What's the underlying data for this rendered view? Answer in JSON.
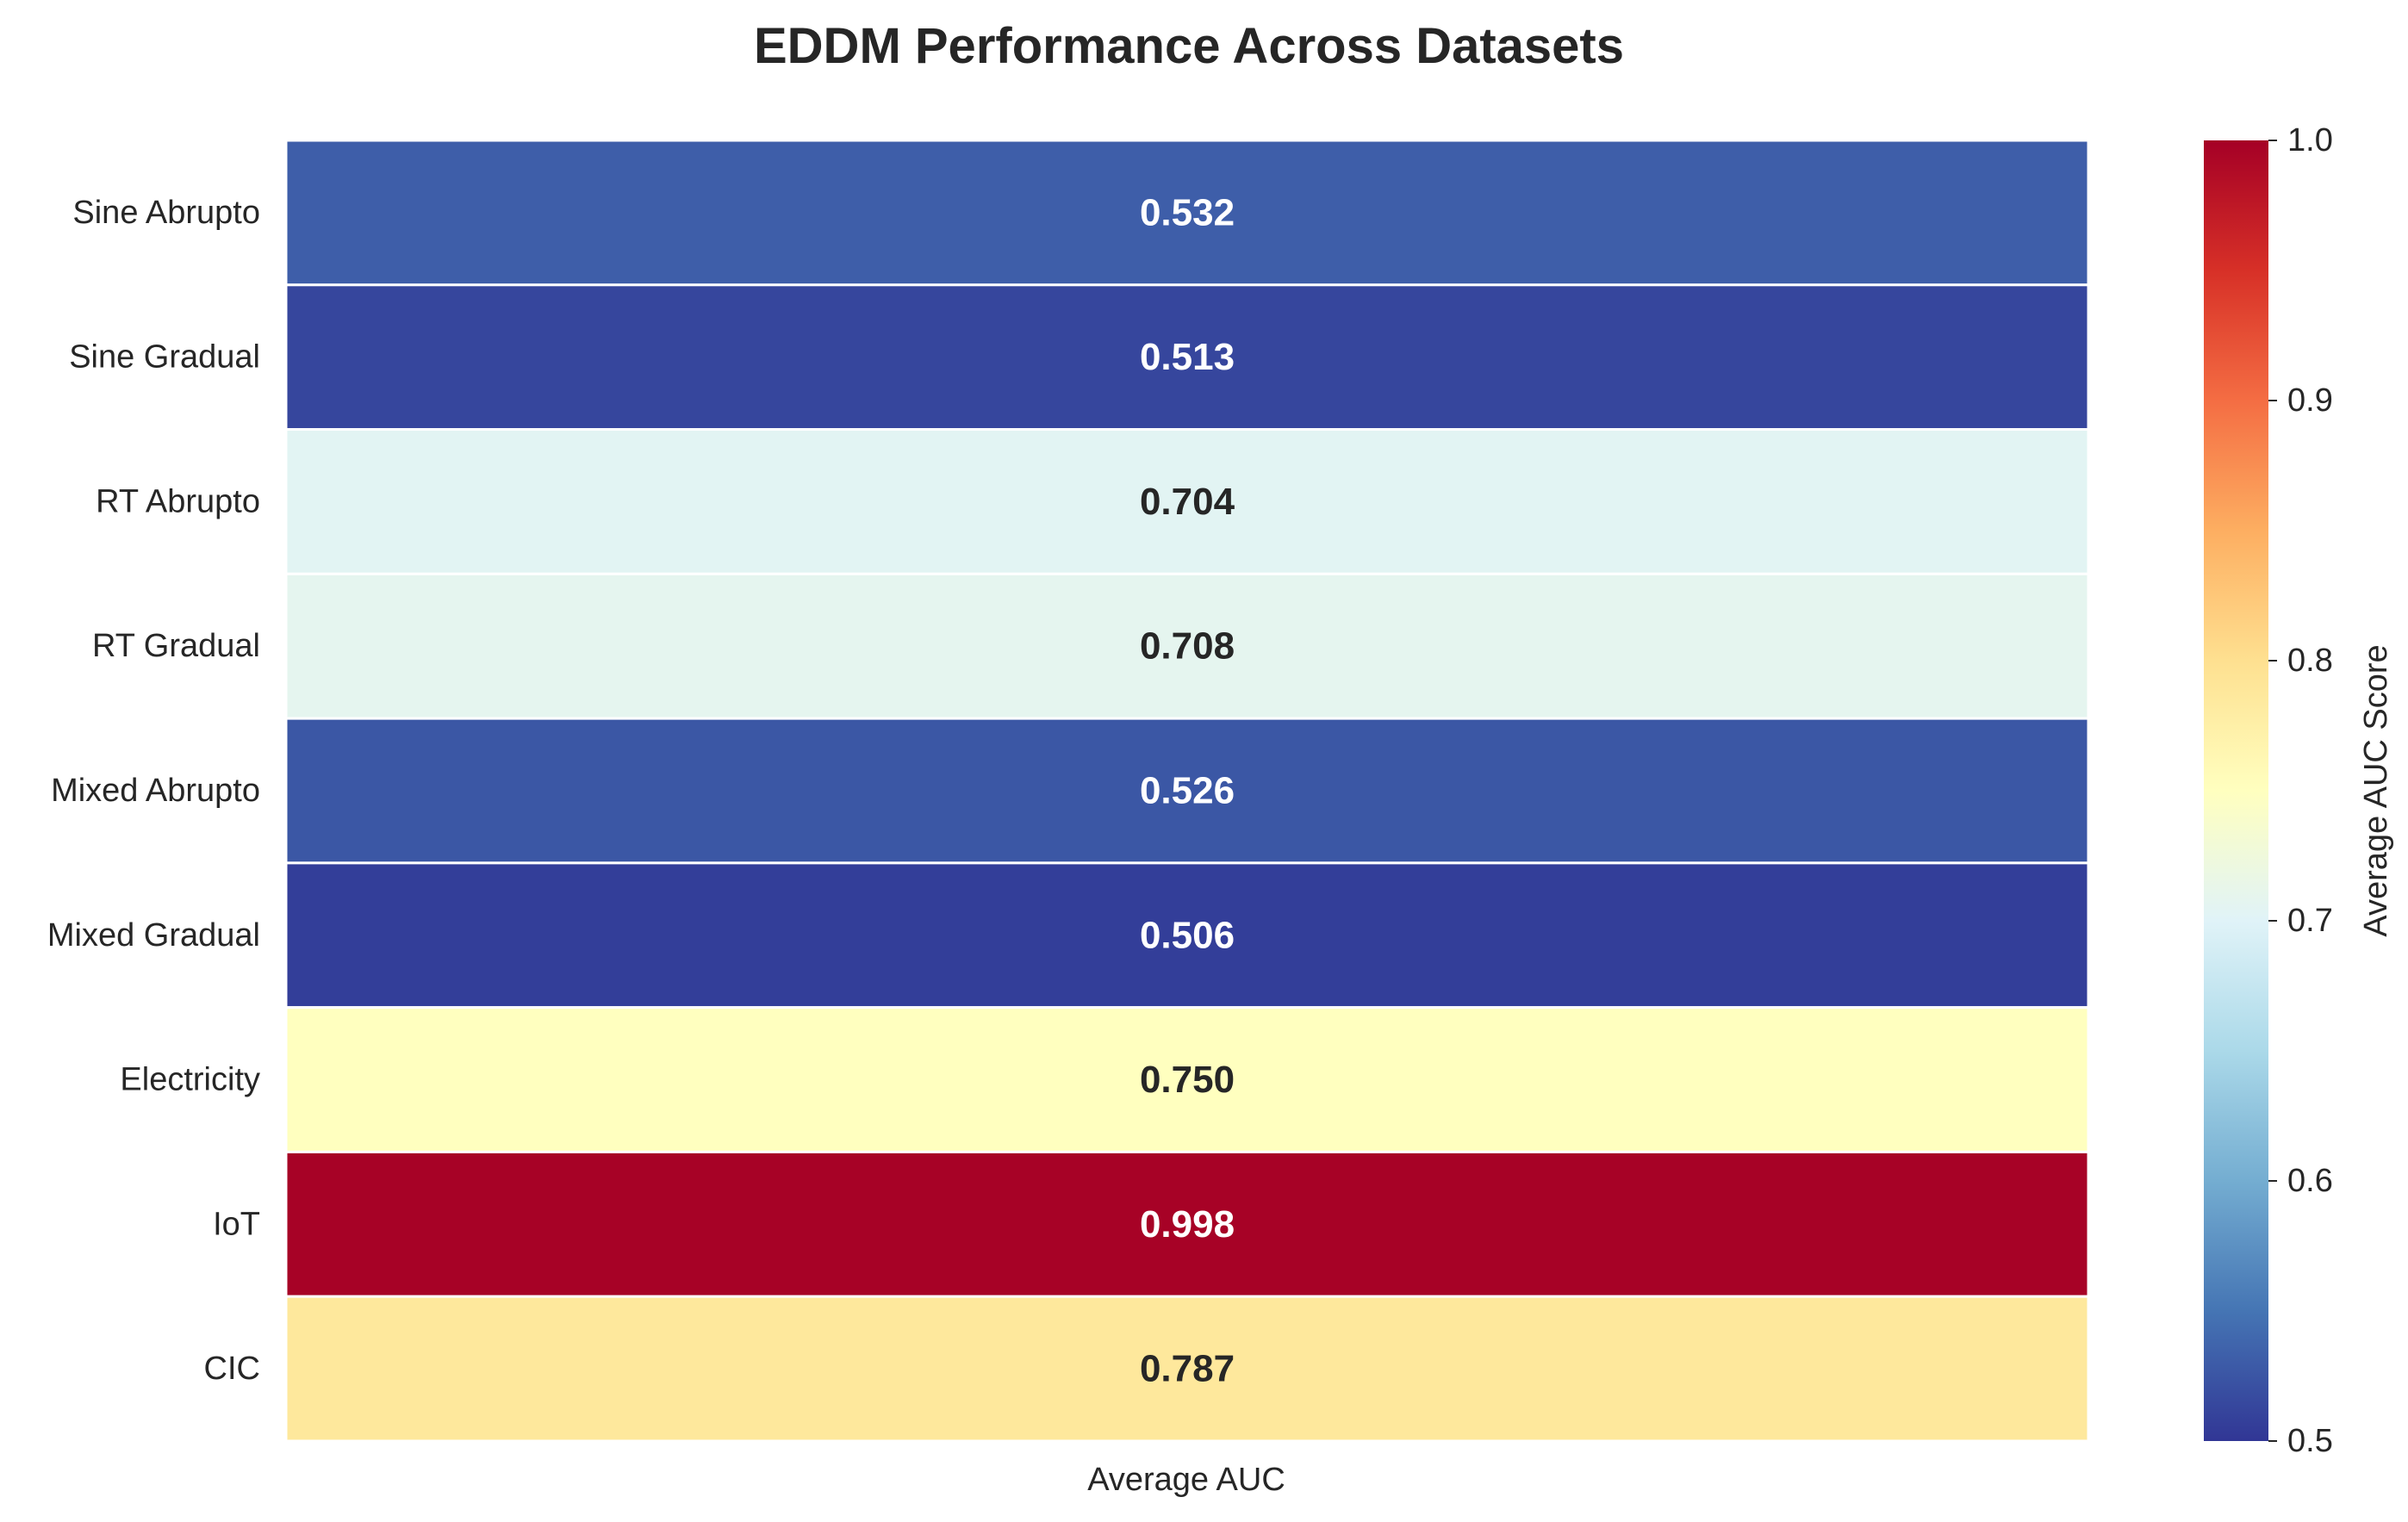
{
  "chart_data": {
    "type": "heatmap",
    "title": "EDDM Performance Across Datasets",
    "rows": [
      "Sine Abrupto",
      "Sine Gradual",
      "RT Abrupto",
      "RT Gradual",
      "Mixed Abrupto",
      "Mixed Gradual",
      "Electricity",
      "IoT",
      "CIC"
    ],
    "columns": [
      "Average AUC"
    ],
    "values": [
      [
        0.532
      ],
      [
        0.513
      ],
      [
        0.704
      ],
      [
        0.708
      ],
      [
        0.526
      ],
      [
        0.506
      ],
      [
        0.75
      ],
      [
        0.998
      ],
      [
        0.787
      ]
    ],
    "value_labels": [
      "0.532",
      "0.513",
      "0.704",
      "0.708",
      "0.526",
      "0.506",
      "0.750",
      "0.998",
      "0.787"
    ],
    "colorscale": "RdYlBu_r",
    "colorbar": {
      "label": "Average AUC Score",
      "range": [
        0.5,
        1.0
      ],
      "ticks": [
        "0.5",
        "0.6",
        "0.7",
        "0.8",
        "0.9",
        "1.0"
      ]
    }
  }
}
